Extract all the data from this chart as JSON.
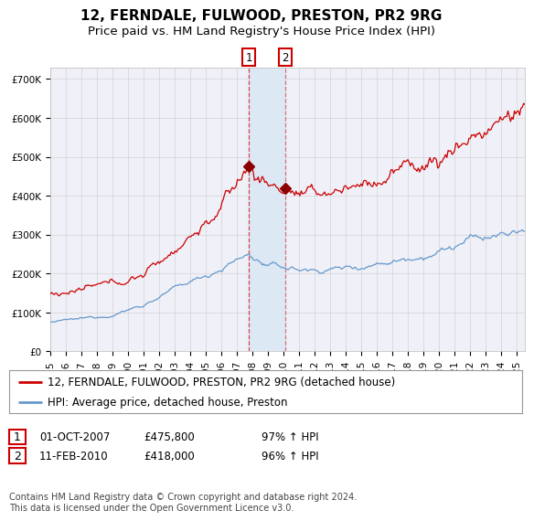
{
  "title": "12, FERNDALE, FULWOOD, PRESTON, PR2 9RG",
  "subtitle": "Price paid vs. HM Land Registry's House Price Index (HPI)",
  "ylim": [
    0,
    730000
  ],
  "yticks": [
    0,
    100000,
    200000,
    300000,
    400000,
    500000,
    600000,
    700000
  ],
  "ytick_labels": [
    "£0",
    "£100K",
    "£200K",
    "£300K",
    "£400K",
    "£500K",
    "£600K",
    "£700K"
  ],
  "xlim_start": 1995.0,
  "xlim_end": 2025.5,
  "red_line_color": "#cc0000",
  "blue_line_color": "#6699cc",
  "marker_color": "#8b0000",
  "vline_color": "#cc0000",
  "shade_color": "#dde8f5",
  "grid_color": "#cccccc",
  "bg_color": "#ffffff",
  "plot_bg_color": "#f0f0f8",
  "legend_label_red": "12, FERNDALE, FULWOOD, PRESTON, PR2 9RG (detached house)",
  "legend_label_blue": "HPI: Average price, detached house, Preston",
  "sale1_date": 2007.75,
  "sale1_price": 475800,
  "sale2_date": 2010.1,
  "sale2_price": 418000,
  "footer": "Contains HM Land Registry data © Crown copyright and database right 2024.\nThis data is licensed under the Open Government Licence v3.0.",
  "title_fontsize": 11,
  "subtitle_fontsize": 9.5,
  "tick_fontsize": 7.5,
  "legend_fontsize": 8.5,
  "footer_fontsize": 7
}
